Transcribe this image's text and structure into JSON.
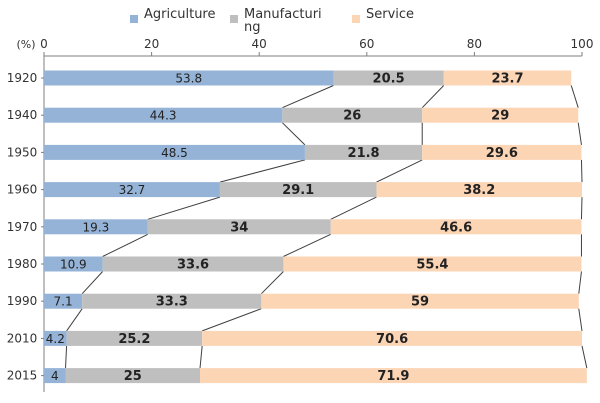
{
  "chart_data": {
    "type": "bar",
    "orientation": "horizontal",
    "stacked": true,
    "unit_label": "(%)",
    "categories": [
      "1920",
      "1940",
      "1950",
      "1960",
      "1970",
      "1980",
      "1990",
      "2010",
      "2015"
    ],
    "series": [
      {
        "name": "Agriculture",
        "color": "#95b3d7",
        "values": [
          53.8,
          44.3,
          48.5,
          32.7,
          19.3,
          10.9,
          7.1,
          4.2,
          4
        ]
      },
      {
        "name": "Manufacturing",
        "color": "#bfbfbf",
        "values": [
          20.5,
          26,
          21.8,
          29.1,
          34,
          33.6,
          33.3,
          25.2,
          25
        ]
      },
      {
        "name": "Service",
        "color": "#fcd5b5",
        "values": [
          23.7,
          29,
          29.6,
          38.2,
          46.6,
          55.4,
          59,
          70.6,
          71.9
        ]
      }
    ],
    "xticks": [
      0,
      20,
      40,
      60,
      80,
      100
    ],
    "xlim": [
      0,
      100
    ],
    "grid": false,
    "legend": "top",
    "connector_lines": true
  },
  "legend": {
    "items": [
      {
        "label": "Agriculture"
      },
      {
        "label_line1": "Manufacturi",
        "label_line2": "ng"
      },
      {
        "label": "Service"
      }
    ]
  }
}
